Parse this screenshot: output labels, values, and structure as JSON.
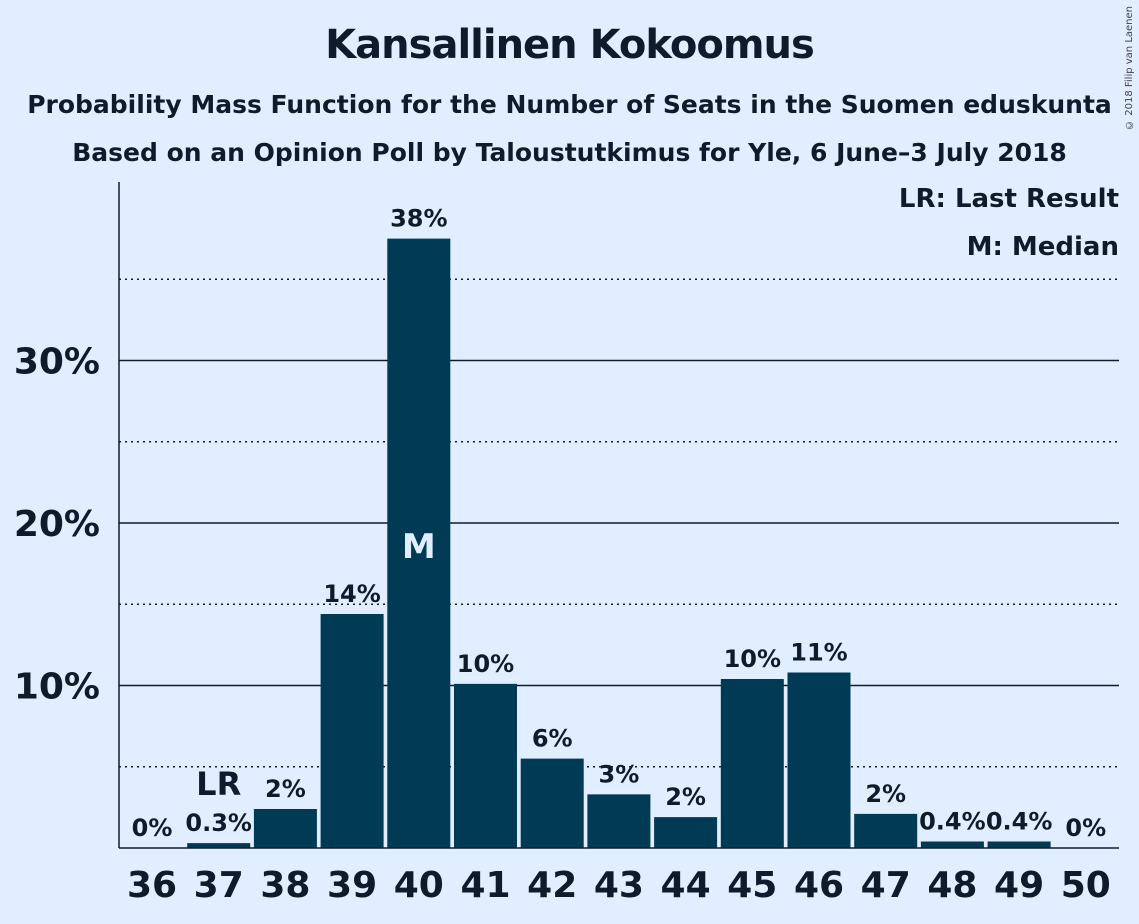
{
  "chart_data": {
    "type": "bar",
    "title": "Kansallinen Kokoomus",
    "subtitle": "Probability Mass Function for the Number of Seats in the Suomen eduskunta",
    "subtitle2": "Based on an Opinion Poll by Taloustutkimus for Yle, 6 June–3 July 2018",
    "categories": [
      "36",
      "37",
      "38",
      "39",
      "40",
      "41",
      "42",
      "43",
      "44",
      "45",
      "46",
      "47",
      "48",
      "49",
      "50"
    ],
    "values": [
      0,
      0.3,
      2.4,
      14.4,
      37.5,
      10.1,
      5.5,
      3.3,
      1.9,
      10.4,
      10.8,
      2.1,
      0.4,
      0.4,
      0
    ],
    "data_labels": [
      "0%",
      "0.3%",
      "2%",
      "14%",
      "38%",
      "10%",
      "6%",
      "3%",
      "2%",
      "10%",
      "11%",
      "2%",
      "0.4%",
      "0.4%",
      "0%"
    ],
    "ylim": [
      0,
      41
    ],
    "yticks": [
      10,
      20,
      30
    ],
    "ytick_labels": [
      "10%",
      "20%",
      "30%"
    ],
    "minor_gridlines": [
      5,
      15,
      25,
      35
    ],
    "xlabel": "",
    "ylabel": "",
    "last_result": {
      "category": "37",
      "label": "LR"
    },
    "median": {
      "category": "40",
      "label": "M"
    },
    "legend": {
      "lr": "LR: Last Result",
      "m": "M: Median",
      "position": "top-right"
    },
    "colors": {
      "bar": "#003a55",
      "background": "#e0eeff",
      "text": "#0d1b2a",
      "median_text": "#e0eeff"
    }
  },
  "copyright": "© 2018 Filip van Laenen"
}
